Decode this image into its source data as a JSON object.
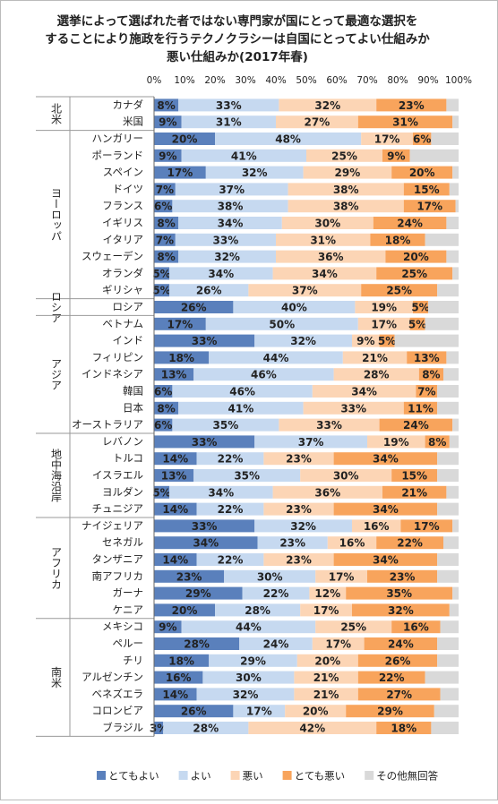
{
  "chart_data": {
    "type": "stacked-bar-horizontal",
    "title": [
      "選挙によって選ばれた者ではない専門家が国にとって最適な選択を",
      "することにより施政を行うテクノクラシーは自国にとってよい仕組みか",
      "悪い仕組みか(2017年春)"
    ],
    "xlim": [
      0,
      100
    ],
    "xticks": [
      {
        "value": 0,
        "label": "0%"
      },
      {
        "value": 10,
        "label": "10%"
      },
      {
        "value": 20,
        "label": "20%"
      },
      {
        "value": 30,
        "label": "30%"
      },
      {
        "value": 40,
        "label": "40%"
      },
      {
        "value": 50,
        "label": "50%"
      },
      {
        "value": 60,
        "label": "60%"
      },
      {
        "value": 70,
        "label": "70%"
      },
      {
        "value": 80,
        "label": "80%"
      },
      {
        "value": 90,
        "label": "90%"
      },
      {
        "value": 100,
        "label": "100%"
      }
    ],
    "groups": [
      {
        "label": "北米",
        "categories": [
          "カナダ",
          "米国"
        ]
      },
      {
        "label": "ヨーロッパ",
        "categories": [
          "ハンガリー",
          "ポーランド",
          "スペイン",
          "ドイツ",
          "フランス",
          "イギリス",
          "イタリア",
          "スウェーデン",
          "オランダ",
          "ギリシャ"
        ]
      },
      {
        "label": "ロシア",
        "categories": [
          "ロシア"
        ]
      },
      {
        "label": "アジア",
        "categories": [
          "ベトナム",
          "インド",
          "フィリピン",
          "インドネシア",
          "韓国",
          "日本",
          "オーストラリア"
        ]
      },
      {
        "label": "地中海沿岸",
        "categories": [
          "レバノン",
          "トルコ",
          "イスラエル",
          "ヨルダン",
          "チュニジア"
        ]
      },
      {
        "label": "アフリカ",
        "categories": [
          "ナイジェリア",
          "セネガル",
          "タンザニア",
          "南アフリカ",
          "ガーナ",
          "ケニア"
        ]
      },
      {
        "label": "南米",
        "categories": [
          "メキシコ",
          "ペルー",
          "チリ",
          "アルゼンチン",
          "ベネズエラ",
          "コロンビア",
          "ブラジル"
        ]
      }
    ],
    "series": [
      {
        "name": "とてもよい",
        "color": "#5a80bc",
        "values": [
          8,
          9,
          20,
          9,
          17,
          7,
          6,
          8,
          7,
          8,
          5,
          5,
          26,
          17,
          33,
          18,
          13,
          6,
          8,
          6,
          33,
          14,
          13,
          5,
          14,
          33,
          34,
          14,
          23,
          29,
          20,
          9,
          28,
          18,
          16,
          14,
          26,
          3
        ],
        "value_labels": [
          "8%",
          "9%",
          "20%",
          "9%",
          "17%",
          "7%",
          "6%",
          "8%",
          "7%",
          "8%",
          "5%",
          "5%",
          "26%",
          "17%",
          "33%",
          "18%",
          "13%",
          "6%",
          "8%",
          "6%",
          "33%",
          "14%",
          "13%",
          "5%",
          "14%",
          "33%",
          "34%",
          "14%",
          "23%",
          "29%",
          "20%",
          "9%",
          "28%",
          "18%",
          "16%",
          "14%",
          "26%",
          "3%"
        ]
      },
      {
        "name": "よい",
        "color": "#c6d9f0",
        "values": [
          33,
          31,
          48,
          41,
          32,
          37,
          38,
          34,
          33,
          32,
          34,
          26,
          40,
          50,
          32,
          44,
          46,
          46,
          41,
          35,
          37,
          22,
          35,
          34,
          22,
          32,
          23,
          22,
          30,
          22,
          28,
          44,
          24,
          29,
          30,
          32,
          17,
          28
        ],
        "value_labels": [
          "33%",
          "31%",
          "48%",
          "41%",
          "32%",
          "37%",
          "38%",
          "34%",
          "33%",
          "32%",
          "34%",
          "26%",
          "40%",
          "50%",
          "32%",
          "44%",
          "46%",
          "46%",
          "41%",
          "35%",
          "37%",
          "22%",
          "35%",
          "34%",
          "22%",
          "32%",
          "23%",
          "22%",
          "30%",
          "22%",
          "28%",
          "44%",
          "24%",
          "29%",
          "30%",
          "32%",
          "17%",
          "28%"
        ]
      },
      {
        "name": "悪い",
        "color": "#fcd5b5",
        "values": [
          32,
          27,
          17,
          25,
          29,
          38,
          38,
          30,
          31,
          36,
          34,
          37,
          19,
          17,
          9,
          21,
          28,
          34,
          33,
          33,
          19,
          23,
          30,
          36,
          23,
          16,
          16,
          23,
          17,
          12,
          17,
          25,
          17,
          20,
          21,
          21,
          20,
          42
        ],
        "value_labels": [
          "32%",
          "27%",
          "17%",
          "25%",
          "29%",
          "38%",
          "38%",
          "30%",
          "31%",
          "36%",
          "34%",
          "37%",
          "19%",
          "17%",
          "9%",
          "21%",
          "28%",
          "34%",
          "33%",
          "33%",
          "19%",
          "23%",
          "30%",
          "36%",
          "23%",
          "16%",
          "16%",
          "23%",
          "17%",
          "12%",
          "17%",
          "25%",
          "17%",
          "20%",
          "21%",
          "21%",
          "20%",
          "42%"
        ]
      },
      {
        "name": "とても悪い",
        "color": "#f8a45c",
        "values": [
          23,
          31,
          6,
          9,
          20,
          15,
          17,
          24,
          18,
          20,
          25,
          25,
          5,
          5,
          5,
          13,
          8,
          7,
          11,
          24,
          8,
          34,
          15,
          21,
          34,
          17,
          22,
          34,
          23,
          35,
          32,
          16,
          24,
          26,
          22,
          27,
          29,
          18
        ],
        "value_labels": [
          "23%",
          "31%",
          "6%",
          "9%",
          "20%",
          "15%",
          "17%",
          "24%",
          "18%",
          "20%",
          "25%",
          "25%",
          "5%",
          "5%",
          "5%",
          "13%",
          "8%",
          "7%",
          "11%",
          "24%",
          "8%",
          "34%",
          "15%",
          "21%",
          "34%",
          "17%",
          "22%",
          "34%",
          "23%",
          "35%",
          "32%",
          "16%",
          "24%",
          "26%",
          "22%",
          "27%",
          "29%",
          "18%"
        ]
      },
      {
        "name": "その他無回答",
        "color": "#d9d9d9",
        "values": [
          4,
          2,
          9,
          16,
          2,
          3,
          1,
          4,
          11,
          4,
          2,
          7,
          10,
          11,
          21,
          4,
          5,
          7,
          7,
          2,
          3,
          7,
          7,
          4,
          7,
          2,
          5,
          7,
          7,
          2,
          3,
          6,
          7,
          7,
          11,
          6,
          8,
          9
        ]
      }
    ]
  }
}
